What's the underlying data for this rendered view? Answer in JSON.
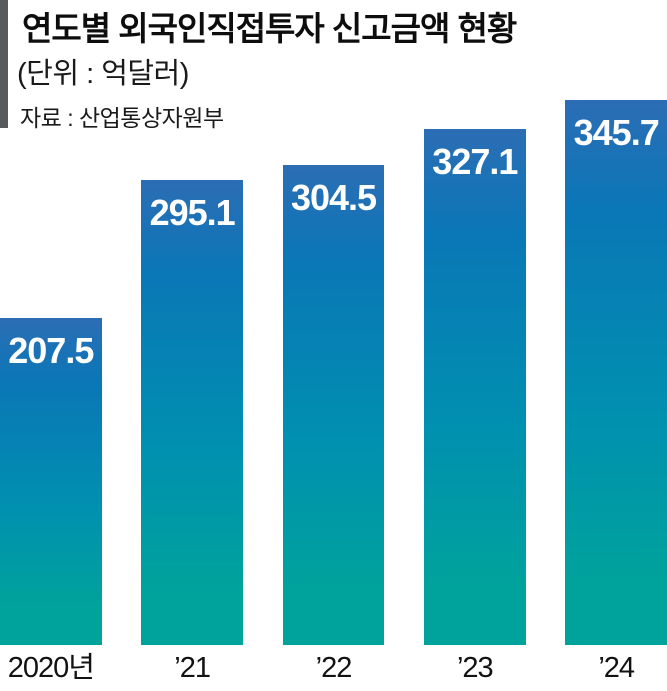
{
  "header": {
    "title": "연도별 외국인직접투자 신고금액 현황",
    "unit_label": "(단위 : 억달러)",
    "source_label": "자료 : 산업통상자원부"
  },
  "chart_data": {
    "type": "bar",
    "title": "연도별 외국인직접투자 신고금액 현황",
    "unit": "억달러",
    "source": "산업통상자원부",
    "categories": [
      "2020년",
      "’21",
      "’22",
      "’23",
      "’24"
    ],
    "values": [
      207.5,
      295.1,
      304.5,
      327.1,
      345.7
    ],
    "value_labels": [
      "207.5",
      "295.1",
      "304.5",
      "327.1",
      "345.7"
    ],
    "ylim": [
      0,
      345.7
    ],
    "grid": false,
    "legend": "none",
    "value_label_position": "inside-top",
    "colors": {
      "bar_gradient_top": "#2c6db5",
      "bar_gradient_mid1": "#0a77b6",
      "bar_gradient_mid2": "#0090b0",
      "bar_gradient_bottom": "#00a29c",
      "value_label": "#ffffff",
      "axis_label": "#121212",
      "title": "#0d0d0d",
      "accent_bar": "#58595b",
      "background": "#ffffff"
    }
  }
}
